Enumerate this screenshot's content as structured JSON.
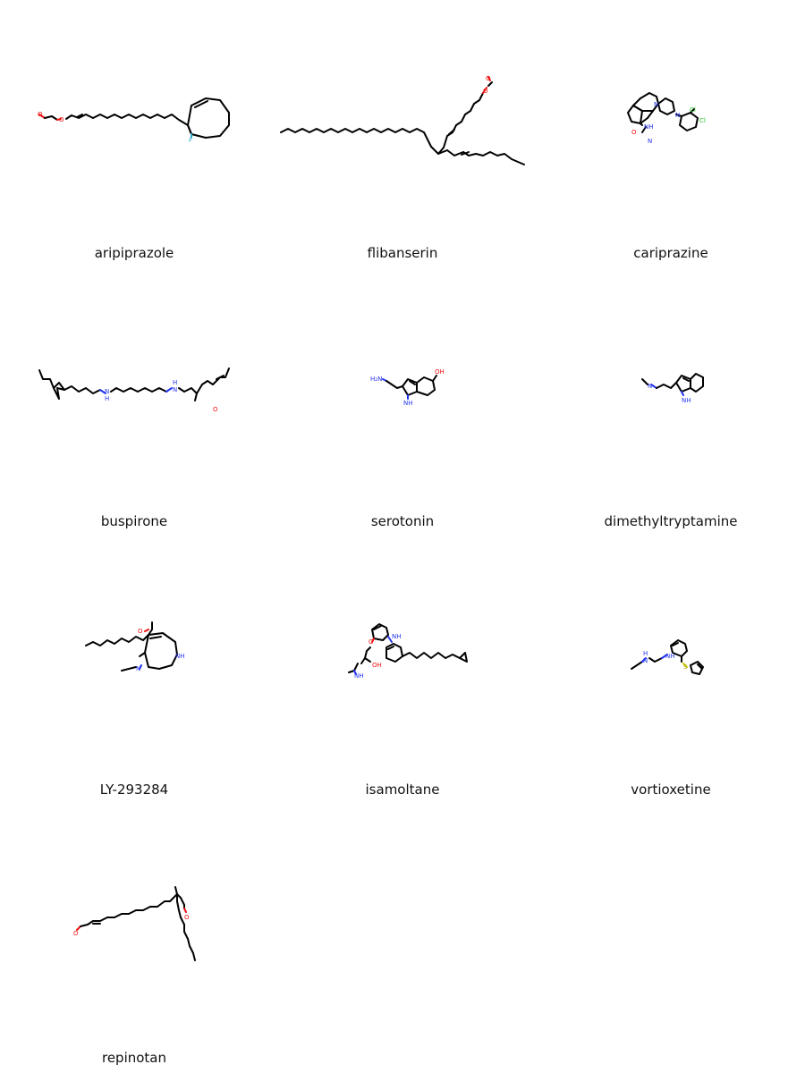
{
  "molecules": [
    {
      "name": "aripiprazole",
      "atom_labels": {
        "O1": "O",
        "O2": "O",
        "F": "F"
      }
    },
    {
      "name": "flibanserin",
      "atom_labels": {
        "O1": "O",
        "O2": "O"
      }
    },
    {
      "name": "cariprazine",
      "atom_labels": {
        "N1": "N",
        "N2": "N",
        "NH": "NH",
        "O": "O",
        "NMe": "N",
        "Cl1": "Cl",
        "Cl2": "Cl"
      }
    },
    {
      "name": "buspirone",
      "atom_labels": {
        "NH1": "N",
        "H1": "H",
        "NH2": "H",
        "N2": "N",
        "O": "O"
      }
    },
    {
      "name": "serotonin",
      "atom_labels": {
        "NH2": "H₂N",
        "OH": "OH",
        "NH": "NH"
      }
    },
    {
      "name": "dimethyltryptamine",
      "atom_labels": {
        "N": "N",
        "NH": "NH"
      }
    },
    {
      "name": "LY-293284",
      "atom_labels": {
        "O": "O",
        "N": "N",
        "NH": "NH"
      }
    },
    {
      "name": "isamoltane",
      "atom_labels": {
        "O": "O",
        "NH1": "NH",
        "NH2": "NH",
        "OH": "OH"
      }
    },
    {
      "name": "vortioxetine",
      "atom_labels": {
        "H": "H",
        "N1": "N",
        "NH": "NH",
        "S": "S"
      }
    },
    {
      "name": "repinotan",
      "atom_labels": {
        "O1": "O",
        "O2": "O"
      }
    }
  ]
}
